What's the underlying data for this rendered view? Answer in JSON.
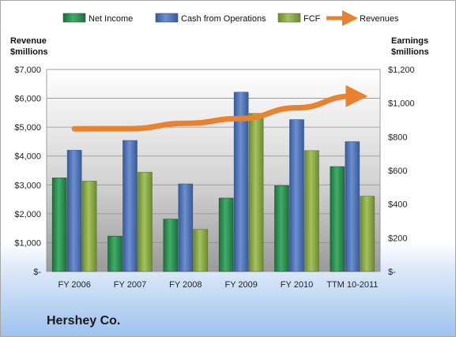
{
  "company": "Hershey Co.",
  "chart_data": {
    "type": "bar",
    "categories": [
      "FY 2006",
      "FY 2007",
      "FY 2008",
      "FY 2009",
      "FY 2010",
      "TTM 10-2011"
    ],
    "left_axis_label": "Revenue\n$millions",
    "right_axis_label": "Earnings\n$millions",
    "left_axis": {
      "min": 0,
      "max": 7000,
      "step": 1000,
      "tick_labels": [
        "$-",
        "$1,000",
        "$2,000",
        "$3,000",
        "$4,000",
        "$5,000",
        "$6,000",
        "$7,000"
      ]
    },
    "right_axis": {
      "min": 0,
      "max": 1200,
      "step": 200,
      "tick_labels": [
        "$-",
        "$200",
        "$400",
        "$600",
        "$800",
        "$1,000",
        "$1,200"
      ]
    },
    "grid": true,
    "legend_position": "top",
    "series": [
      {
        "name": "Net Income",
        "axis": "right",
        "color": "#2e8b50",
        "values": [
          556,
          210,
          311,
          436,
          510,
          623
        ]
      },
      {
        "name": "Cash from Operations",
        "axis": "right",
        "color": "#4a6fb0",
        "values": [
          720,
          778,
          520,
          1065,
          902,
          771
        ]
      },
      {
        "name": "FCF",
        "axis": "right",
        "color": "#8aaa45",
        "values": [
          537,
          590,
          250,
          939,
          718,
          447
        ]
      },
      {
        "name": "Revenues",
        "axis": "left",
        "color": "#e8822e",
        "style": "arrow",
        "values": [
          4944,
          4947,
          5133,
          5299,
          5671,
          6075
        ]
      }
    ]
  }
}
